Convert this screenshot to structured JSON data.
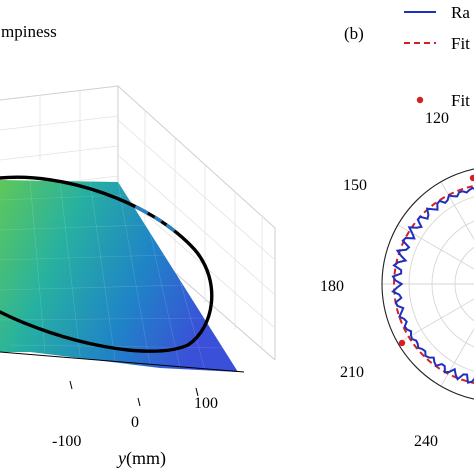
{
  "chart_data": [
    {
      "type": "surface-3d",
      "title_fragment": "mpiness",
      "ylabel_var": "y",
      "ylabel_unit": "(mm)",
      "y_ticks": [
        "-100",
        "0",
        "100"
      ],
      "colormap": [
        "#5fc85a",
        "#27b1a0",
        "#1f84c6",
        "#3a50d8"
      ],
      "trace_color": "#000000"
    },
    {
      "type": "polar",
      "panel_label": "(b)",
      "angle_ticks": [
        "120",
        "150",
        "180",
        "210",
        "240"
      ],
      "legend": [
        "Ra",
        "Fit",
        "Fit"
      ],
      "legend_placement": "top-right",
      "series": [
        {
          "name": "Ra",
          "style": "solid",
          "color": "#1f2fbf"
        },
        {
          "name": "Fit",
          "style": "dashed",
          "color": "#d42020"
        },
        {
          "name": "Fit",
          "style": "points",
          "color": "#d42020"
        }
      ],
      "visible_angle_range_deg": [
        105,
        262
      ]
    }
  ]
}
